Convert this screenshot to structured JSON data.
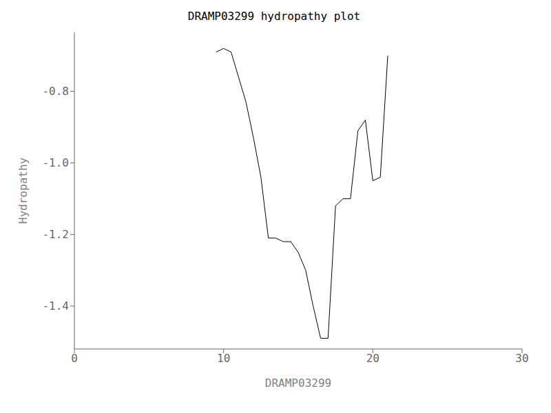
{
  "chart_data": {
    "type": "line",
    "title": "DRAMP03299 hydropathy plot",
    "xlabel": "DRAMP03299",
    "ylabel": "Hydropathy",
    "xlim": [
      0,
      30
    ],
    "ylim": [
      -1.52,
      -0.635
    ],
    "xticks": [
      0,
      10,
      20,
      30
    ],
    "yticks": [
      {
        "value": -1.4,
        "label": "-1.4"
      },
      {
        "value": -1.2,
        "label": "-1.2"
      },
      {
        "value": -1.0,
        "label": "-1.0"
      },
      {
        "value": -0.8,
        "label": "-0.8"
      }
    ],
    "color": "black",
    "grid": false,
    "legend": false,
    "x": [
      9.5,
      10.0,
      10.5,
      11.0,
      11.5,
      12.0,
      12.5,
      13.0,
      13.5,
      14.0,
      14.5,
      15.0,
      15.5,
      16.0,
      16.5,
      17.0,
      17.5,
      18.0,
      18.5,
      19.0,
      19.5,
      20.0,
      20.5,
      21.0
    ],
    "values": [
      -0.69,
      -0.68,
      -0.69,
      -0.76,
      -0.83,
      -0.93,
      -1.04,
      -1.21,
      -1.21,
      -1.22,
      -1.22,
      -1.25,
      -1.3,
      -1.4,
      -1.49,
      -1.49,
      -1.12,
      -1.1,
      -1.1,
      -0.91,
      -0.88,
      -1.05,
      -1.04,
      -0.7
    ]
  }
}
